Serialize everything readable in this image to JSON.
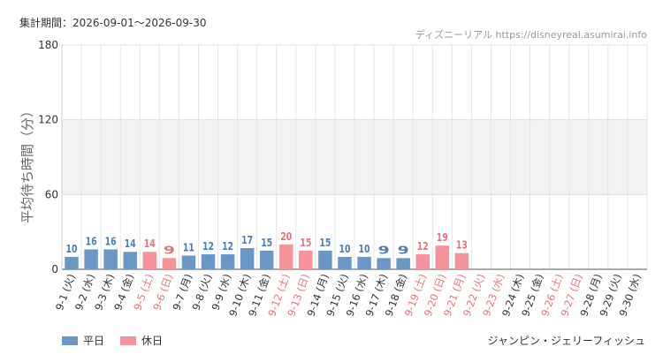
{
  "header": {
    "period": "集計期間：2026-09-01〜2026-09-30",
    "site": "ディズニーリアル https://disneyreal.asumirai.info"
  },
  "footer": {
    "attraction": "ジャンピン・ジェリーフィッシュ"
  },
  "colors": {
    "weekday": "#6a97c6",
    "holiday": "#f6939a",
    "weekday_text": "#4a7fb5",
    "holiday_text": "#e8737c"
  },
  "chart_data": {
    "type": "bar",
    "ylabel": "平均待ち時間（分）",
    "ylim": [
      0,
      180
    ],
    "yticks": [
      0,
      60,
      120,
      180
    ],
    "grid": true,
    "legend_position": "bottom-left",
    "legend": [
      {
        "key": "weekday",
        "label": "平日"
      },
      {
        "key": "holiday",
        "label": "休日"
      }
    ],
    "categories": [
      "9-1 (火)",
      "9-2 (水)",
      "9-3 (木)",
      "9-4 (金)",
      "9-5 (土)",
      "9-6 (日)",
      "9-7 (月)",
      "9-8 (火)",
      "9-9 (水)",
      "9-10 (木)",
      "9-11 (金)",
      "9-12 (土)",
      "9-13 (日)",
      "9-14 (月)",
      "9-15 (火)",
      "9-16 (水)",
      "9-17 (木)",
      "9-18 (金)",
      "9-19 (土)",
      "9-20 (日)",
      "9-21 (月)",
      "9-22 (火)",
      "9-23 (水)",
      "9-24 (木)",
      "9-25 (金)",
      "9-26 (土)",
      "9-27 (日)",
      "9-28 (月)",
      "9-29 (火)",
      "9-30 (水)"
    ],
    "values": [
      10,
      16,
      16,
      14,
      14,
      9,
      11,
      12,
      12,
      17,
      15,
      20,
      15,
      15,
      10,
      10,
      9,
      9,
      12,
      19,
      13,
      null,
      null,
      null,
      null,
      null,
      null,
      null,
      null,
      null
    ],
    "day_type": [
      "weekday",
      "weekday",
      "weekday",
      "weekday",
      "holiday",
      "holiday",
      "weekday",
      "weekday",
      "weekday",
      "weekday",
      "weekday",
      "holiday",
      "holiday",
      "weekday",
      "weekday",
      "weekday",
      "weekday",
      "weekday",
      "holiday",
      "holiday",
      "holiday",
      "holiday",
      "holiday",
      "weekday",
      "weekday",
      "holiday",
      "holiday",
      "weekday",
      "weekday",
      "weekday"
    ]
  }
}
